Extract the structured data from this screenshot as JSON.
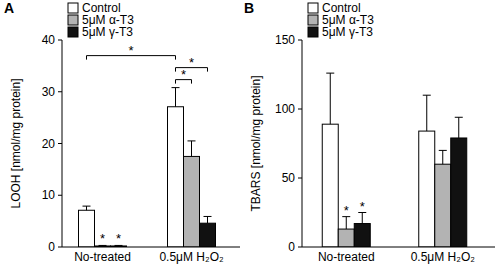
{
  "chart_data": [
    {
      "type": "bar",
      "title": "A",
      "y_label": "LOOH [nmol/mg protein]",
      "categories": [
        "No-treated",
        "0.5μM H₂O₂"
      ],
      "series": [
        {
          "name": "Control",
          "color": "#ffffff",
          "values": [
            7.1,
            27.1
          ],
          "errors": [
            0.8,
            3.7
          ]
        },
        {
          "name": "5μM α-T3",
          "color": "#b3b3b3",
          "values": [
            0.2,
            17.5
          ],
          "errors": [
            0.1,
            3.0
          ]
        },
        {
          "name": "5μM γ-T3",
          "color": "#111111",
          "values": [
            0.2,
            4.6
          ],
          "errors": [
            0.1,
            1.3
          ]
        }
      ],
      "ylim": [
        0,
        40
      ],
      "yticks": [
        0,
        10,
        20,
        30,
        40
      ],
      "grid": false,
      "legend": "top-left",
      "annotations": [
        {
          "text": "*",
          "bars": [
            [
              1,
              0
            ]
          ]
        },
        {
          "text": "*",
          "bars": [
            [
              2,
              0
            ]
          ]
        },
        {
          "text": "*",
          "bars": [
            [
              0,
              0
            ],
            [
              0,
              1
            ]
          ]
        },
        {
          "text": "*",
          "bars": [
            [
              0,
              1
            ],
            [
              1,
              1
            ]
          ]
        },
        {
          "text": "*",
          "bars": [
            [
              0,
              1
            ],
            [
              2,
              1
            ]
          ]
        }
      ]
    },
    {
      "type": "bar",
      "title": "B",
      "y_label": "TBARS [nmol/mg protein]",
      "categories": [
        "No-treated",
        "0.5μM H₂O₂"
      ],
      "series": [
        {
          "name": "Control",
          "color": "#ffffff",
          "values": [
            89,
            84
          ],
          "errors": [
            37,
            26
          ]
        },
        {
          "name": "5μM α-T3",
          "color": "#b3b3b3",
          "values": [
            13,
            60
          ],
          "errors": [
            9,
            10
          ]
        },
        {
          "name": "5μM γ-T3",
          "color": "#111111",
          "values": [
            17,
            79
          ],
          "errors": [
            8,
            15
          ]
        }
      ],
      "ylim": [
        0,
        150
      ],
      "yticks": [
        0,
        50,
        100,
        150
      ],
      "grid": false,
      "legend": "top-left",
      "annotations": [
        {
          "text": "*",
          "bars": [
            [
              1,
              0
            ]
          ]
        },
        {
          "text": "*",
          "bars": [
            [
              2,
              0
            ]
          ]
        }
      ]
    }
  ]
}
